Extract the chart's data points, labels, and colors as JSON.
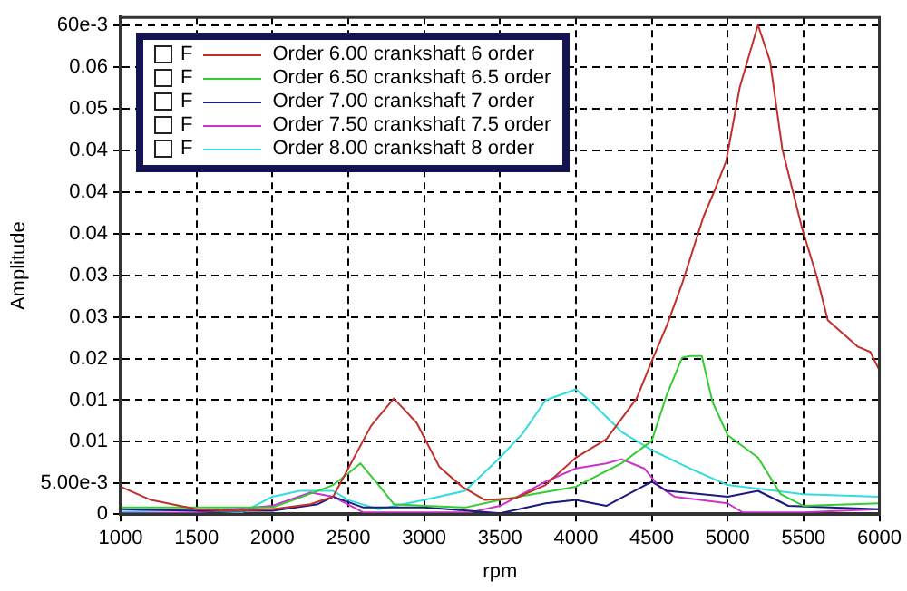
{
  "chart_data": {
    "type": "line",
    "xlabel": "rpm",
    "ylabel": "Amplitude",
    "legend": "top left",
    "grid": true,
    "line_style": "solid",
    "marker": "none",
    "annotations": [
      "F",
      "F",
      "F",
      "F",
      "F"
    ],
    "xlim": [
      1000,
      6000
    ],
    "xticks": [
      1000,
      1500,
      2000,
      2500,
      3000,
      3500,
      4000,
      4500,
      5000,
      5500,
      6000
    ],
    "ylim": [
      0.0013,
      0.061
    ],
    "yticks": [
      {
        "value": 0.0013,
        "label": "0"
      },
      {
        "value": 0.005,
        "label": "5.00e-3"
      },
      {
        "value": 0.01,
        "label": "0.01"
      },
      {
        "value": 0.015,
        "label": "0.01"
      },
      {
        "value": 0.02,
        "label": "0.02"
      },
      {
        "value": 0.025,
        "label": "0.03"
      },
      {
        "value": 0.03,
        "label": "0.03"
      },
      {
        "value": 0.035,
        "label": "0.04"
      },
      {
        "value": 0.04,
        "label": "0.04"
      },
      {
        "value": 0.045,
        "label": "0.04"
      },
      {
        "value": 0.05,
        "label": "0.05"
      },
      {
        "value": 0.055,
        "label": "0.06"
      },
      {
        "value": 0.06,
        "label": "60e-3"
      }
    ],
    "series": [
      {
        "name": "Order 6.00 crankshaft 6 order",
        "color": "#c0302c",
        "x": [
          1000,
          1200,
          1500,
          1750,
          2000,
          2250,
          2400,
          2500,
          2650,
          2800,
          2950,
          3100,
          3250,
          3400,
          3600,
          3800,
          4000,
          4200,
          4400,
          4500,
          4600,
          4700,
          4840,
          4910,
          4990,
          5080,
          5200,
          5280,
          5360,
          5490,
          5590,
          5660,
          5860,
          5940,
          6000
        ],
        "values": [
          0.0046,
          0.003,
          0.0019,
          0.0017,
          0.0019,
          0.0025,
          0.0034,
          0.0068,
          0.0119,
          0.0152,
          0.0123,
          0.007,
          0.0046,
          0.003,
          0.0032,
          0.0048,
          0.0081,
          0.0103,
          0.0152,
          0.0197,
          0.024,
          0.029,
          0.037,
          0.04,
          0.0437,
          0.0526,
          0.0601,
          0.0557,
          0.0452,
          0.0357,
          0.0297,
          0.0246,
          0.0214,
          0.0208,
          0.0186
        ]
      },
      {
        "name": "Order 6.50 crankshaft 6.5 order",
        "color": "#33cc33",
        "x": [
          1000,
          1500,
          2000,
          2200,
          2400,
          2500,
          2580,
          2700,
          2800,
          3000,
          3270,
          3500,
          4000,
          4300,
          4500,
          4600,
          4700,
          4750,
          4830,
          4900,
          5000,
          5200,
          5350,
          5500,
          6000
        ],
        "values": [
          0.0021,
          0.0021,
          0.0021,
          0.0034,
          0.0048,
          0.0062,
          0.0074,
          0.0048,
          0.0025,
          0.0023,
          0.0021,
          0.003,
          0.0046,
          0.0074,
          0.0101,
          0.0157,
          0.0201,
          0.0203,
          0.0203,
          0.0148,
          0.0108,
          0.0081,
          0.0037,
          0.0023,
          0.0026
        ]
      },
      {
        "name": "Order 7.00 crankshaft 7 order",
        "color": "#1a1a80",
        "x": [
          1000,
          1500,
          2000,
          2300,
          2400,
          2600,
          3000,
          3300,
          3500,
          3800,
          4000,
          4200,
          4500,
          4600,
          5000,
          5200,
          5400,
          6000
        ],
        "values": [
          0.0019,
          0.0017,
          0.0017,
          0.0025,
          0.0034,
          0.0021,
          0.0021,
          0.0017,
          0.0014,
          0.0026,
          0.003,
          0.0023,
          0.0052,
          0.0041,
          0.0034,
          0.0041,
          0.0023,
          0.0019
        ]
      },
      {
        "name": "Order 7.50 crankshaft 7.5 order",
        "color": "#cc33cc",
        "x": [
          1000,
          1500,
          2000,
          2250,
          2400,
          2600,
          3000,
          3300,
          3500,
          3800,
          4000,
          4200,
          4300,
          4450,
          4550,
          4650,
          5000,
          5100,
          5500,
          6000
        ],
        "values": [
          0.0014,
          0.0015,
          0.0023,
          0.0039,
          0.0034,
          0.0015,
          0.0015,
          0.0015,
          0.0023,
          0.0052,
          0.0068,
          0.0074,
          0.0079,
          0.0068,
          0.0046,
          0.0034,
          0.0026,
          0.0015,
          0.0015,
          0.0019
        ]
      },
      {
        "name": "Order 8.00 crankshaft 8 order",
        "color": "#33dddd",
        "x": [
          1000,
          1500,
          1800,
          2000,
          2180,
          2400,
          2500,
          2700,
          3000,
          3270,
          3500,
          3650,
          3800,
          4000,
          4100,
          4300,
          4500,
          4750,
          5000,
          5500,
          6000
        ],
        "values": [
          0.0016,
          0.0018,
          0.0015,
          0.0034,
          0.0041,
          0.0041,
          0.003,
          0.0019,
          0.003,
          0.0041,
          0.0081,
          0.011,
          0.015,
          0.0163,
          0.0148,
          0.0112,
          0.009,
          0.0068,
          0.0048,
          0.0037,
          0.0034
        ]
      }
    ]
  }
}
